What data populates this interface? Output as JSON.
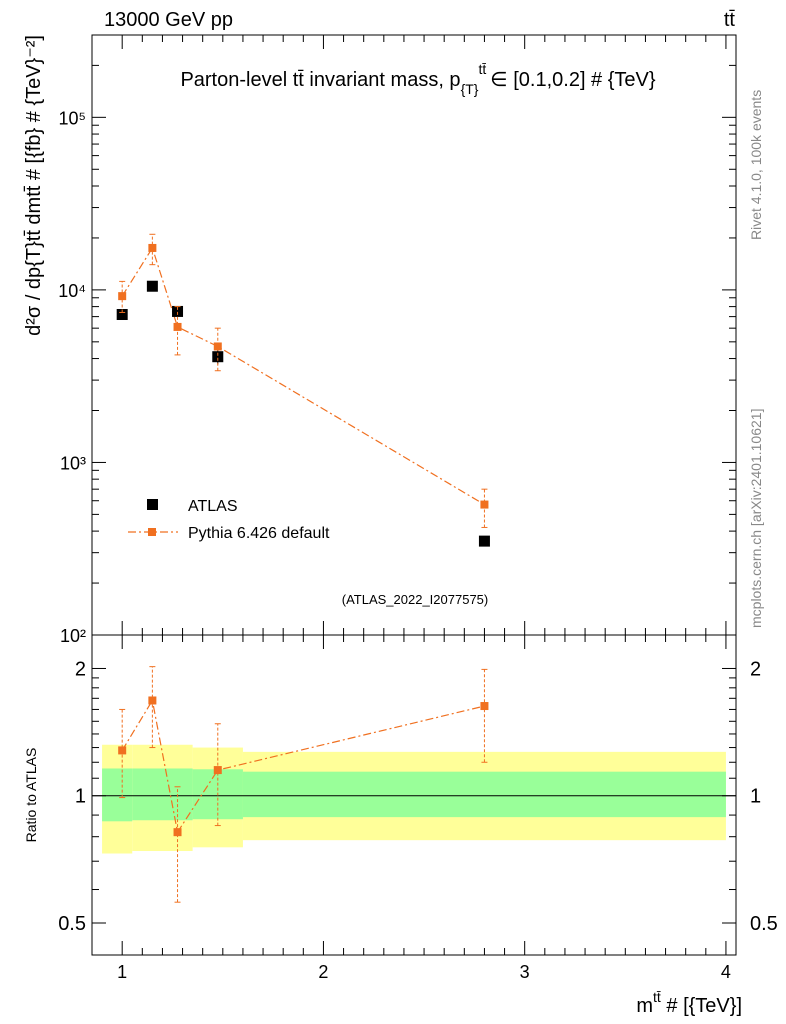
{
  "header": {
    "left": "13000 GeV pp",
    "right": "tt̄"
  },
  "side_labels": {
    "version": "Rivet 4.1.0,  100k events",
    "source": "mcplots.cern.ch [arXiv:2401.10621]"
  },
  "chart_data": [
    {
      "type": "scatter",
      "title": "Parton-level tt̄ invariant mass, p",
      "title_sub": "{T}",
      "title_sup": "tt̄",
      "title_tail": "∈ [0.1,0.2] # {TeV}",
      "ylabel": "d²σ / dp{T}tt̄ dmtt̄ # [{fb} # {TeV}⁻²]",
      "xlabel": "m",
      "xlabel_sup": "tt̄",
      "xlabel_tail": " # [{TeV}]",
      "yscale": "log",
      "ylim": [
        100,
        300000
      ],
      "xlim": [
        0.85,
        4.05
      ],
      "y_ticks": [
        {
          "value": 100,
          "label": "10²"
        },
        {
          "value": 1000,
          "label": "10³"
        },
        {
          "value": 10000,
          "label": "10⁴"
        },
        {
          "value": 100000,
          "label": "10⁵"
        }
      ],
      "watermark": "(ATLAS_2022_I2077575)",
      "legend": {
        "position": "bottom-left"
      },
      "series": [
        {
          "name": "ATLAS",
          "color": "#000000",
          "marker": "square",
          "points": [
            {
              "x": 1.0,
              "y": 7200,
              "lo": 6800,
              "hi": 7600
            },
            {
              "x": 1.15,
              "y": 10500,
              "lo": 10100,
              "hi": 10900
            },
            {
              "x": 1.275,
              "y": 7500,
              "lo": 7000,
              "hi": 8000
            },
            {
              "x": 1.475,
              "y": 4100,
              "lo": 3700,
              "hi": 4500
            },
            {
              "x": 2.8,
              "y": 350,
              "lo": 330,
              "hi": 370
            }
          ]
        },
        {
          "name": "Pythia 6.426 default",
          "color": "#f07020",
          "marker": "square",
          "line": "dash-dot",
          "points": [
            {
              "x": 1.0,
              "y": 9200,
              "lo": 7400,
              "hi": 11200
            },
            {
              "x": 1.15,
              "y": 17500,
              "lo": 14000,
              "hi": 21000
            },
            {
              "x": 1.275,
              "y": 6100,
              "lo": 4200,
              "hi": 8000
            },
            {
              "x": 1.475,
              "y": 4700,
              "lo": 3400,
              "hi": 6000
            },
            {
              "x": 2.8,
              "y": 570,
              "lo": 420,
              "hi": 700
            }
          ]
        }
      ]
    },
    {
      "type": "scatter",
      "ylabel": "Ratio to ATLAS",
      "yscale": "log",
      "ylim": [
        0.42,
        2.4
      ],
      "xlim": [
        0.85,
        4.05
      ],
      "y_ticks": [
        {
          "value": 0.5,
          "label": "0.5"
        },
        {
          "value": 1,
          "label": "1"
        },
        {
          "value": 2,
          "label": "2"
        }
      ],
      "x_ticks": [
        {
          "value": 1,
          "label": "1"
        },
        {
          "value": 2,
          "label": "2"
        },
        {
          "value": 3,
          "label": "3"
        },
        {
          "value": 4,
          "label": "4"
        }
      ],
      "bands": [
        {
          "x0": 0.9,
          "x1": 1.05,
          "stat_lo": 0.87,
          "stat_hi": 1.16,
          "tot_lo": 0.73,
          "tot_hi": 1.32
        },
        {
          "x0": 1.05,
          "x1": 1.35,
          "stat_lo": 0.875,
          "stat_hi": 1.16,
          "tot_lo": 0.74,
          "tot_hi": 1.32
        },
        {
          "x0": 1.35,
          "x1": 1.6,
          "stat_lo": 0.88,
          "stat_hi": 1.155,
          "tot_lo": 0.755,
          "tot_hi": 1.3
        },
        {
          "x0": 1.6,
          "x1": 4.0,
          "stat_lo": 0.89,
          "stat_hi": 1.14,
          "tot_lo": 0.785,
          "tot_hi": 1.27
        }
      ],
      "reference": 1.0,
      "series": [
        {
          "name": "Pythia 6.426 default / ATLAS",
          "color": "#f07020",
          "points": [
            {
              "x": 1.0,
              "y": 1.28,
              "lo": 0.99,
              "hi": 1.6
            },
            {
              "x": 1.15,
              "y": 1.68,
              "lo": 1.3,
              "hi": 2.02
            },
            {
              "x": 1.275,
              "y": 0.82,
              "lo": 0.56,
              "hi": 1.05
            },
            {
              "x": 1.475,
              "y": 1.15,
              "lo": 0.85,
              "hi": 1.48
            },
            {
              "x": 2.8,
              "y": 1.63,
              "lo": 1.2,
              "hi": 1.99
            }
          ]
        }
      ]
    }
  ]
}
